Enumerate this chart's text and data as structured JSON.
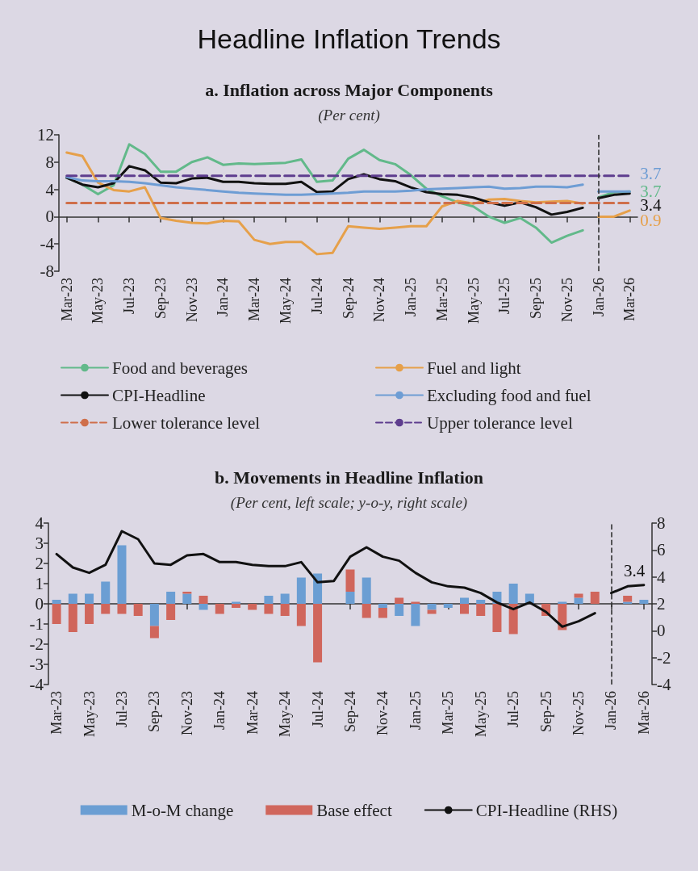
{
  "chart_data": [
    {
      "type": "line",
      "title": "a. Inflation across Major Components",
      "subtitle": "(Per cent)",
      "annotations": [
        "Headline Inflation Trends"
      ],
      "categories": [
        "Mar-23",
        null,
        "May-23",
        null,
        "Jul-23",
        null,
        "Sep-23",
        null,
        "Nov-23",
        null,
        "Jan-24",
        null,
        "Mar-24",
        null,
        "May-24",
        null,
        "Jul-24",
        null,
        "Sep-24",
        null,
        "Nov-24",
        null,
        "Jan-25",
        null,
        "Mar-25",
        null,
        "May-25",
        null,
        "Jul-25",
        null,
        "Sep-25",
        null,
        "Nov-25",
        null,
        "Jan-26",
        null,
        "Mar-26"
      ],
      "ylim": [
        -8,
        12
      ],
      "yticks": [
        -8,
        -4,
        0,
        4,
        8,
        12
      ],
      "legend": "bottom",
      "marker": "none",
      "line_style": "solid",
      "ref_lines": [
        {
          "axis": "x",
          "value": "Jan-26",
          "color": "#333333",
          "line_style": "dashed"
        }
      ],
      "series": [
        {
          "name": "Food and beverages",
          "color": "#62b98a",
          "values": [
            5.7,
            4.7,
            3.3,
            4.6,
            10.6,
            9.2,
            6.6,
            6.6,
            8.0,
            8.7,
            7.6,
            7.8,
            7.7,
            7.8,
            7.9,
            8.4,
            5.1,
            5.3,
            8.5,
            9.8,
            8.3,
            7.7,
            6.1,
            4.1,
            3.0,
            2.1,
            1.5,
            0.0,
            -0.9,
            -0.2,
            -1.6,
            -3.8,
            -2.8,
            -2.0,
            null,
            null,
            null
          ]
        },
        {
          "name": "Fuel and light",
          "color": "#e6a04a",
          "values": [
            9.4,
            8.9,
            5.0,
            3.9,
            3.7,
            4.3,
            -0.2,
            -0.6,
            -0.9,
            -1.0,
            -0.6,
            -0.7,
            -3.4,
            -4.0,
            -3.7,
            -3.7,
            -5.5,
            -5.3,
            -1.4,
            -1.6,
            -1.8,
            -1.6,
            -1.4,
            -1.4,
            1.5,
            2.3,
            1.9,
            2.5,
            2.6,
            2.3,
            2.1,
            2.2,
            2.3,
            1.9,
            null,
            null,
            null
          ]
        },
        {
          "name": "CPI-Headline",
          "color": "#111111",
          "values": [
            5.7,
            4.7,
            4.3,
            4.9,
            7.4,
            6.8,
            5.0,
            4.9,
            5.6,
            5.7,
            5.1,
            5.1,
            4.9,
            4.8,
            4.8,
            5.1,
            3.6,
            3.7,
            5.5,
            6.2,
            5.5,
            5.2,
            4.3,
            3.6,
            3.3,
            3.2,
            2.8,
            2.1,
            1.6,
            2.1,
            1.4,
            0.3,
            0.7,
            1.3,
            null,
            null,
            null
          ]
        },
        {
          "name": "Excluding food and fuel",
          "color": "#6e9dd4",
          "values": [
            5.8,
            5.3,
            5.2,
            5.2,
            5.1,
            4.9,
            4.6,
            4.3,
            4.1,
            3.9,
            3.7,
            3.5,
            3.4,
            3.3,
            3.2,
            3.2,
            3.3,
            3.4,
            3.5,
            3.7,
            3.7,
            3.7,
            3.8,
            4.0,
            4.1,
            4.2,
            4.3,
            4.4,
            4.1,
            4.2,
            4.4,
            4.4,
            4.3,
            4.7,
            null,
            null,
            null
          ]
        },
        {
          "name": "Lower tolerance level",
          "color": "#cf6f4a",
          "line_style": "dashed",
          "values": [
            2,
            2,
            2,
            2,
            2,
            2,
            2,
            2,
            2,
            2,
            2,
            2,
            2,
            2,
            2,
            2,
            2,
            2,
            2,
            2,
            2,
            2,
            2,
            2,
            2,
            2,
            2,
            2,
            2,
            2,
            2,
            2,
            2,
            2,
            2,
            2,
            2
          ]
        },
        {
          "name": "Upper tolerance level",
          "color": "#5e3d8e",
          "line_style": "dashed",
          "values": [
            6,
            6,
            6,
            6,
            6,
            6,
            6,
            6,
            6,
            6,
            6,
            6,
            6,
            6,
            6,
            6,
            6,
            6,
            6,
            6,
            6,
            6,
            6,
            6,
            6,
            6,
            6,
            6,
            6,
            6,
            6,
            6,
            6,
            6,
            6,
            6,
            6
          ]
        },
        {
          "color": "#62b98a",
          "values": [
            null,
            null,
            null,
            null,
            null,
            null,
            null,
            null,
            null,
            null,
            null,
            null,
            null,
            null,
            null,
            null,
            null,
            null,
            null,
            null,
            null,
            null,
            null,
            null,
            null,
            null,
            null,
            null,
            null,
            null,
            null,
            null,
            null,
            null,
            2.8,
            3.6,
            3.7
          ],
          "value_labels": [
            null,
            null,
            null,
            null,
            null,
            null,
            null,
            null,
            null,
            null,
            null,
            null,
            null,
            null,
            null,
            null,
            null,
            null,
            null,
            null,
            null,
            null,
            null,
            null,
            null,
            null,
            null,
            null,
            null,
            null,
            null,
            null,
            null,
            null,
            null,
            null,
            "3.7"
          ]
        },
        {
          "color": "#e6a04a",
          "values": [
            null,
            null,
            null,
            null,
            null,
            null,
            null,
            null,
            null,
            null,
            null,
            null,
            null,
            null,
            null,
            null,
            null,
            null,
            null,
            null,
            null,
            null,
            null,
            null,
            null,
            null,
            null,
            null,
            null,
            null,
            null,
            null,
            null,
            null,
            0.0,
            0.0,
            0.9
          ],
          "value_labels": [
            null,
            null,
            null,
            null,
            null,
            null,
            null,
            null,
            null,
            null,
            null,
            null,
            null,
            null,
            null,
            null,
            null,
            null,
            null,
            null,
            null,
            null,
            null,
            null,
            null,
            null,
            null,
            null,
            null,
            null,
            null,
            null,
            null,
            null,
            null,
            null,
            "0.9"
          ]
        },
        {
          "color": "#111111",
          "values": [
            null,
            null,
            null,
            null,
            null,
            null,
            null,
            null,
            null,
            null,
            null,
            null,
            null,
            null,
            null,
            null,
            null,
            null,
            null,
            null,
            null,
            null,
            null,
            null,
            null,
            null,
            null,
            null,
            null,
            null,
            null,
            null,
            null,
            null,
            2.7,
            3.2,
            3.4
          ],
          "value_labels": [
            null,
            null,
            null,
            null,
            null,
            null,
            null,
            null,
            null,
            null,
            null,
            null,
            null,
            null,
            null,
            null,
            null,
            null,
            null,
            null,
            null,
            null,
            null,
            null,
            null,
            null,
            null,
            null,
            null,
            null,
            null,
            null,
            null,
            null,
            null,
            null,
            "3.4"
          ]
        },
        {
          "color": "#6e9dd4",
          "values": [
            null,
            null,
            null,
            null,
            null,
            null,
            null,
            null,
            null,
            null,
            null,
            null,
            null,
            null,
            null,
            null,
            null,
            null,
            null,
            null,
            null,
            null,
            null,
            null,
            null,
            null,
            null,
            null,
            null,
            null,
            null,
            null,
            null,
            null,
            3.7,
            3.7,
            3.7
          ],
          "value_labels": [
            null,
            null,
            null,
            null,
            null,
            null,
            null,
            null,
            null,
            null,
            null,
            null,
            null,
            null,
            null,
            null,
            null,
            null,
            null,
            null,
            null,
            null,
            null,
            null,
            null,
            null,
            null,
            null,
            null,
            null,
            null,
            null,
            null,
            null,
            null,
            null,
            "3.7"
          ]
        }
      ]
    },
    {
      "type": "bar",
      "title": "b. Movements in Headline Inflation",
      "subtitle": "(Per cent, left scale; y-o-y, right scale)",
      "stacked": true,
      "categories": [
        "Mar-23",
        null,
        "May-23",
        null,
        "Jul-23",
        null,
        "Sep-23",
        null,
        "Nov-23",
        null,
        "Jan-24",
        null,
        "Mar-24",
        null,
        "May-24",
        null,
        "Jul-24",
        null,
        "Sep-24",
        null,
        "Nov-24",
        null,
        "Jan-25",
        null,
        "Mar-25",
        null,
        "May-25",
        null,
        "Jul-25",
        null,
        "Sep-25",
        null,
        "Nov-25",
        null,
        "Jan-26",
        null,
        "Mar-26"
      ],
      "ylim": [
        -4,
        4
      ],
      "yticks": [
        -4,
        -3,
        -2,
        -1,
        0,
        1,
        2,
        3,
        4
      ],
      "y2lim": [
        -4,
        8
      ],
      "y2ticks": [
        -4,
        -2,
        0,
        2,
        4,
        6,
        8
      ],
      "legend": "bottom",
      "marker": "none",
      "line_style": "solid",
      "ref_lines": [
        {
          "axis": "x",
          "value": "Jan-26",
          "color": "#333333",
          "line_style": "dashed"
        }
      ],
      "series": [
        {
          "name": "M-o-M change",
          "color": "#6b9ed3",
          "values": [
            0.2,
            0.5,
            0.5,
            1.1,
            2.9,
            0,
            -1.1,
            0.6,
            0.5,
            -0.3,
            0,
            0.1,
            0,
            0.4,
            0.5,
            1.3,
            1.5,
            0,
            0.6,
            1.3,
            -0.2,
            -0.6,
            -1.1,
            -0.3,
            -0.2,
            0.3,
            0.2,
            0.6,
            1.0,
            0.5,
            0,
            0.1,
            0.3,
            0,
            0,
            0.1,
            0.2
          ]
        },
        {
          "name": "Base effect",
          "color": "#d0665c",
          "values": [
            -1.0,
            -1.4,
            -1.0,
            -0.5,
            -0.5,
            -0.6,
            -0.6,
            -0.8,
            0.1,
            0.4,
            -0.5,
            -0.2,
            -0.3,
            -0.5,
            -0.6,
            -1.1,
            -2.9,
            0.0,
            1.1,
            -0.7,
            -0.5,
            0.3,
            0.1,
            -0.2,
            0,
            -0.5,
            -0.6,
            -1.4,
            -1.5,
            0,
            -0.6,
            -1.3,
            0.2,
            0.6,
            0,
            0.3,
            0
          ]
        },
        {
          "name": "CPI-Headline (RHS)",
          "type": "line",
          "axis": "y2",
          "color": "#111111",
          "values": [
            5.7,
            4.7,
            4.3,
            4.9,
            7.4,
            6.8,
            5.0,
            4.9,
            5.6,
            5.7,
            5.1,
            5.1,
            4.9,
            4.8,
            4.8,
            5.1,
            3.6,
            3.7,
            5.5,
            6.2,
            5.5,
            5.2,
            4.3,
            3.6,
            3.3,
            3.2,
            2.8,
            2.1,
            1.6,
            2.1,
            1.4,
            0.3,
            0.7,
            1.3,
            null,
            null,
            null
          ]
        },
        {
          "type": "line",
          "axis": "y2",
          "color": "#111111",
          "values": [
            null,
            null,
            null,
            null,
            null,
            null,
            null,
            null,
            null,
            null,
            null,
            null,
            null,
            null,
            null,
            null,
            null,
            null,
            null,
            null,
            null,
            null,
            null,
            null,
            null,
            null,
            null,
            null,
            null,
            null,
            null,
            null,
            null,
            null,
            2.8,
            3.3,
            3.4
          ],
          "value_labels": [
            null,
            null,
            null,
            null,
            null,
            null,
            null,
            null,
            null,
            null,
            null,
            null,
            null,
            null,
            null,
            null,
            null,
            null,
            null,
            null,
            null,
            null,
            null,
            null,
            null,
            null,
            null,
            null,
            null,
            null,
            null,
            null,
            null,
            null,
            null,
            null,
            "3.4"
          ]
        }
      ]
    }
  ]
}
